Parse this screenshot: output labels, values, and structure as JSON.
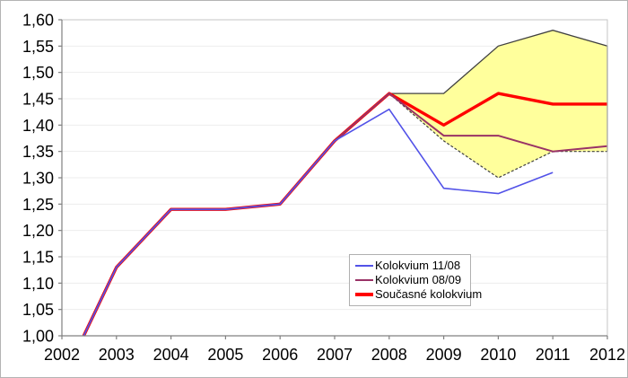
{
  "figure": {
    "background": "#ffffff",
    "outer_border_color": "#b3b3b3",
    "plot_border_color": "#c6c6c6",
    "axis_color": "#808080",
    "gridline_color": "#ededed",
    "text_color": "#000000"
  },
  "chart_data": {
    "type": "line",
    "title": "",
    "xlabel": "",
    "ylabel": "",
    "grid": true,
    "legend_position": "inside-bottom-center",
    "x_domain": [
      2002,
      2012
    ],
    "y_domain": [
      1.0,
      1.6
    ],
    "x_categories": [
      "2002",
      "2003",
      "2004",
      "2005",
      "2006",
      "2007",
      "2008",
      "2009",
      "2010",
      "2011",
      "2012"
    ],
    "y_ticks": [
      {
        "value": 1.0,
        "label": "1,00"
      },
      {
        "value": 1.05,
        "label": "1,05"
      },
      {
        "value": 1.1,
        "label": "1,10"
      },
      {
        "value": 1.15,
        "label": "1,15"
      },
      {
        "value": 1.2,
        "label": "1,20"
      },
      {
        "value": 1.25,
        "label": "1,25"
      },
      {
        "value": 1.3,
        "label": "1,30"
      },
      {
        "value": 1.35,
        "label": "1,35"
      },
      {
        "value": 1.4,
        "label": "1,40"
      },
      {
        "value": 1.45,
        "label": "1,45"
      },
      {
        "value": 1.5,
        "label": "1,50"
      },
      {
        "value": 1.55,
        "label": "1,55"
      },
      {
        "value": 1.6,
        "label": "1,60"
      }
    ],
    "series": [
      {
        "name": "Kolokvium 11/08",
        "color": "#5252e8",
        "line_width": 1.6,
        "points": [
          [
            2002.4,
            1.0
          ],
          [
            2003,
            1.13
          ],
          [
            2004,
            1.24
          ],
          [
            2005,
            1.24
          ],
          [
            2006,
            1.25
          ],
          [
            2007,
            1.37
          ],
          [
            2008,
            1.43
          ],
          [
            2009,
            1.28
          ],
          [
            2010,
            1.27
          ],
          [
            2011,
            1.31
          ]
        ]
      },
      {
        "name": "Kolokvium 08/09",
        "color": "#993366",
        "line_width": 2,
        "points": [
          [
            2002.4,
            1.0
          ],
          [
            2003,
            1.13
          ],
          [
            2004,
            1.24
          ],
          [
            2005,
            1.24
          ],
          [
            2006,
            1.25
          ],
          [
            2007,
            1.37
          ],
          [
            2008,
            1.46
          ],
          [
            2009,
            1.38
          ],
          [
            2010,
            1.38
          ],
          [
            2011,
            1.35
          ],
          [
            2012,
            1.36
          ]
        ]
      },
      {
        "name": "Současné kolokvium",
        "color": "#ff0000",
        "line_width": 3.4,
        "points": [
          [
            2002.4,
            1.0
          ],
          [
            2003,
            1.13
          ],
          [
            2004,
            1.24
          ],
          [
            2005,
            1.24
          ],
          [
            2006,
            1.25
          ],
          [
            2007,
            1.37
          ],
          [
            2008,
            1.46
          ],
          [
            2009,
            1.4
          ],
          [
            2010,
            1.46
          ],
          [
            2011,
            1.44
          ],
          [
            2012,
            1.44
          ]
        ]
      }
    ],
    "draw_order": [
      2,
      1,
      0
    ],
    "uncertainty_band": {
      "fill": "#ffff9c",
      "border_color": "#404040",
      "upper": [
        [
          2008,
          1.46
        ],
        [
          2009,
          1.46
        ],
        [
          2010,
          1.55
        ],
        [
          2011,
          1.58
        ],
        [
          2012,
          1.55
        ]
      ],
      "lower": [
        [
          2008,
          1.46
        ],
        [
          2009,
          1.37
        ],
        [
          2010,
          1.3
        ],
        [
          2011,
          1.35
        ],
        [
          2012,
          1.35
        ]
      ],
      "lower_style": "dashed",
      "right_edge_dashed_to_axis": true
    }
  },
  "legend": {
    "entries": [
      {
        "label": "Kolokvium 11/08"
      },
      {
        "label": "Kolokvium 08/09"
      },
      {
        "label": "Současné kolokvium"
      }
    ]
  }
}
